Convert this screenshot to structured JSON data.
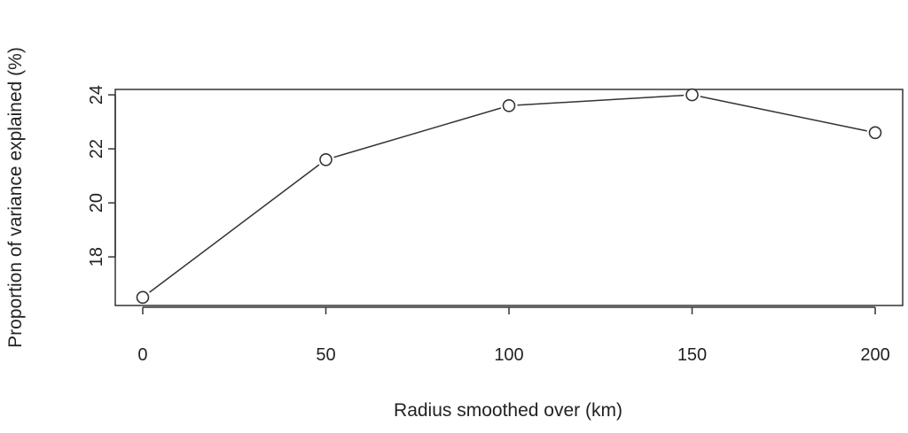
{
  "chart_data": {
    "type": "line",
    "title": "",
    "xlabel": "Radius smoothed over (km)",
    "ylabel": "Proportion of variance explained (%)",
    "x": [
      0,
      50,
      100,
      150,
      200
    ],
    "series": [
      {
        "values": [
          16.5,
          21.6,
          23.6,
          24.0,
          22.6
        ]
      }
    ],
    "xticks": [
      0,
      50,
      100,
      150,
      200
    ],
    "xtick_labels": [
      "0",
      "50",
      "100",
      "150",
      "200"
    ],
    "yticks": [
      18,
      20,
      22,
      24
    ],
    "ytick_labels": [
      "18",
      "20",
      "22",
      "24"
    ],
    "xlim": [
      -7.5,
      207.5
    ],
    "ylim": [
      16.2,
      24.2
    ],
    "grid": false,
    "legend": "none",
    "marker": "open-circle",
    "colors": {
      "line": "#333333",
      "frame": "#333333",
      "marker_fill": "#ffffff"
    }
  }
}
